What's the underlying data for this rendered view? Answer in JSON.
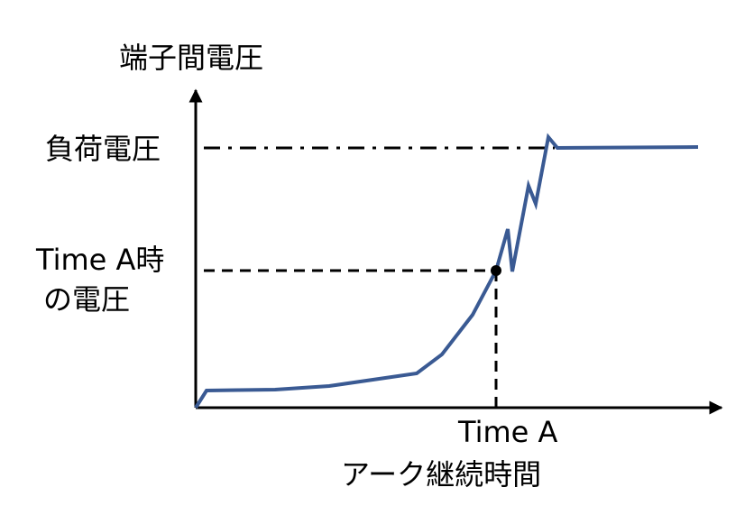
{
  "diagram": {
    "y_axis_label": "端子間電圧",
    "x_axis_label": "アーク継続時間",
    "load_voltage_label": "負荷電圧",
    "voltage_at_time_a_label_line1": "Time A時",
    "voltage_at_time_a_label_line2": "の電圧",
    "time_a_label": "Time A"
  },
  "colors": {
    "curve": "#3a5a93",
    "axes": "#000000",
    "guides": "#000000",
    "marker": "#000000"
  }
}
